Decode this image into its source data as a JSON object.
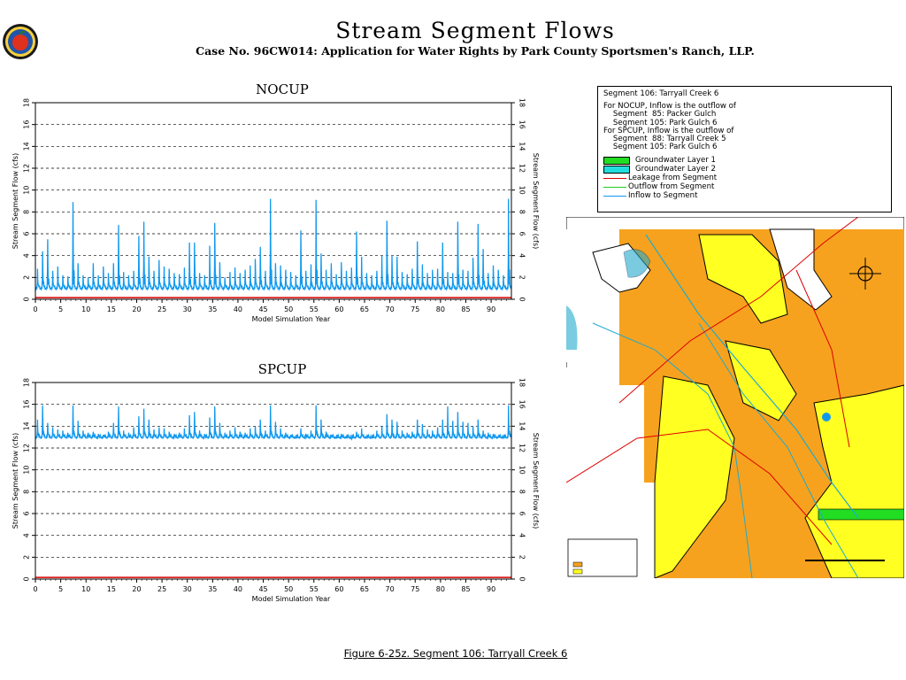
{
  "header": {
    "title": "Stream Segment Flows",
    "subtitle": "Case No. 96CW014: Application for Water Rights by Park County Sportsmen's Ranch, LLP."
  },
  "caption": "Figure 6-25z.  Segment 106: Tarryall Creek 6",
  "legend": {
    "lines": [
      "Segment 106: Tarryall Creek 6",
      "",
      "For NOCUP, Inflow is the outflow of",
      "    Segment  85: Packer Gulch",
      "    Segment 105: Park Gulch 6",
      "For SPCUP, Inflow is the outflow of",
      "    Segment  88: Tarryall Creek 5",
      "    Segment 105: Park Gulch 6"
    ],
    "items": [
      {
        "kind": "swatch",
        "label": "Groundwater Layer 1",
        "color": "#22dd22"
      },
      {
        "kind": "swatch",
        "label": "Groundwater Layer 2",
        "color": "#22dddd"
      },
      {
        "kind": "line",
        "label": "Leakage from Segment",
        "color": "#dd0000"
      },
      {
        "kind": "line",
        "label": "Outflow from Segment",
        "color": "#22cc22"
      },
      {
        "kind": "line",
        "label": "Inflow to Segment",
        "color": "#1199ee"
      }
    ]
  },
  "chart_data": [
    {
      "type": "line",
      "title": "NOCUP",
      "xlabel": "Model Simulation Year",
      "ylabel": "Stream Segment Flow (cfs)",
      "y2label": "Stream Segment Flow (cfs)",
      "xlim": [
        0,
        94
      ],
      "ylim": [
        0,
        18
      ],
      "xticks": [
        "0",
        "5",
        "10",
        "15",
        "20",
        "25",
        "30",
        "35",
        "40",
        "45",
        "50",
        "55",
        "60",
        "65",
        "70",
        "75",
        "80",
        "85",
        "90"
      ],
      "yticks": [
        "0",
        "2",
        "4",
        "6",
        "8",
        "10",
        "12",
        "14",
        "16",
        "18"
      ],
      "grid": "horizontal-dashed",
      "series": [
        {
          "color": "#1199ee",
          "baseline": 0.9,
          "amplitude": 0.4,
          "year_peaks": [
            2.8,
            4.4,
            5.5,
            2.6,
            3.0,
            2.2,
            2.1,
            8.9,
            3.3,
            2.2,
            2.0,
            3.3,
            2.2,
            3.0,
            2.4,
            3.3,
            6.8,
            2.5,
            2.2,
            2.6,
            5.8,
            7.1,
            3.9,
            2.6,
            3.6,
            3.0,
            2.8,
            2.4,
            2.3,
            2.9,
            5.2,
            5.2,
            2.4,
            2.2,
            4.9,
            7.0,
            3.4,
            2.0,
            2.5,
            2.9,
            2.4,
            2.7,
            3.1,
            3.7,
            4.8,
            2.6,
            9.2,
            3.3,
            3.1,
            2.7,
            2.5,
            2.2,
            6.3,
            2.6,
            3.2,
            9.1,
            4.2,
            2.7,
            3.3,
            2.3,
            3.4,
            2.6,
            2.9,
            6.2,
            3.9,
            2.4,
            2.2,
            2.6,
            4.0,
            7.2,
            4.0,
            3.9,
            2.5,
            2.3,
            2.8,
            5.3,
            3.2,
            2.4,
            2.7,
            2.8,
            5.2,
            2.5,
            2.4,
            7.1,
            2.7,
            2.6,
            3.8,
            6.9,
            4.6,
            2.4,
            3.1,
            2.7,
            2.2,
            9.2
          ]
        },
        {
          "color": "#dd0000",
          "constant": 0.15
        }
      ]
    },
    {
      "type": "line",
      "title": "SPCUP",
      "xlabel": "Model Simulation Year",
      "ylabel": "Stream Segment Flow (cfs)",
      "y2label": "Stream Segment Flow (cfs)",
      "xlim": [
        0,
        94
      ],
      "ylim": [
        0,
        18
      ],
      "xticks": [
        "0",
        "5",
        "10",
        "15",
        "20",
        "25",
        "30",
        "35",
        "40",
        "45",
        "50",
        "55",
        "60",
        "65",
        "70",
        "75",
        "80",
        "85",
        "90"
      ],
      "yticks": [
        "0",
        "2",
        "4",
        "6",
        "8",
        "10",
        "12",
        "14",
        "16",
        "18"
      ],
      "grid": "horizontal-dashed",
      "series": [
        {
          "color": "#1199ee",
          "baseline": 12.9,
          "amplitude": 0.3,
          "year_peaks": [
            14.6,
            15.9,
            14.3,
            13.9,
            13.7,
            13.6,
            13.4,
            15.9,
            14.5,
            13.6,
            13.4,
            13.5,
            13.3,
            13.2,
            13.5,
            14.3,
            15.8,
            13.6,
            13.4,
            13.9,
            14.9,
            15.6,
            14.6,
            13.7,
            13.9,
            13.8,
            13.5,
            13.3,
            13.4,
            13.8,
            15.0,
            15.3,
            13.6,
            13.3,
            14.8,
            15.8,
            14.3,
            13.4,
            13.6,
            13.9,
            13.5,
            13.4,
            13.8,
            14.0,
            14.6,
            13.6,
            15.9,
            14.4,
            13.8,
            13.4,
            13.2,
            12.9,
            13.8,
            13.3,
            13.6,
            15.9,
            14.6,
            13.5,
            13.2,
            12.9,
            13.3,
            13.0,
            12.8,
            13.5,
            13.8,
            13.0,
            12.9,
            13.6,
            14.0,
            15.1,
            14.6,
            14.4,
            13.6,
            13.4,
            13.5,
            14.6,
            14.2,
            13.7,
            13.6,
            13.9,
            14.6,
            15.8,
            14.5,
            15.3,
            14.4,
            14.3,
            14.0,
            14.6,
            13.6,
            13.4,
            13.3,
            13.1,
            13.0,
            15.9
          ]
        },
        {
          "color": "#dd0000",
          "constant": 0.15
        }
      ]
    }
  ]
}
